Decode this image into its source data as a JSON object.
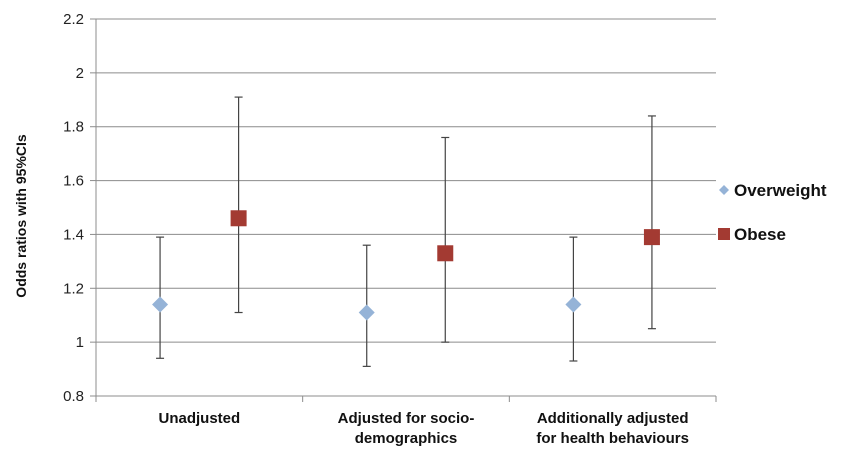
{
  "chart_data": {
    "type": "scatter",
    "ylabel": "Odds ratios with 95%CIs",
    "ylim": [
      0.8,
      2.2
    ],
    "yticks": [
      "0.8",
      "1",
      "1.2",
      "1.4",
      "1.6",
      "1.8",
      "2",
      "2.2"
    ],
    "grid": true,
    "legend_position": "right",
    "categories": [
      [
        "Unadjusted"
      ],
      [
        "Adjusted for socio-",
        "demographics"
      ],
      [
        "Additionally adjusted",
        "for health behaviours"
      ]
    ],
    "series": [
      {
        "name": "Overweight",
        "marker": "diamond",
        "color": "#95b3d7",
        "values": [
          1.14,
          1.11,
          1.14
        ],
        "ci_low": [
          0.94,
          0.91,
          0.93
        ],
        "ci_high": [
          1.39,
          1.36,
          1.39
        ]
      },
      {
        "name": "Obese",
        "marker": "square",
        "color": "#a33a32",
        "values": [
          1.46,
          1.33,
          1.39
        ],
        "ci_low": [
          1.11,
          1.0,
          1.05
        ],
        "ci_high": [
          1.91,
          1.76,
          1.84
        ]
      }
    ]
  }
}
